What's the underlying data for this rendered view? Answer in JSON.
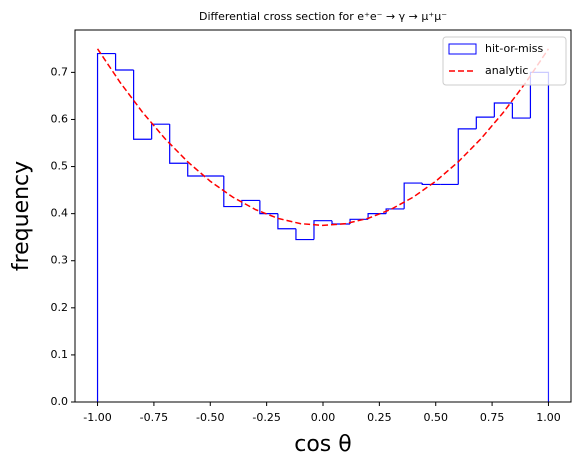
{
  "chart_data": {
    "type": "histogram",
    "title": "Differential cross section for e⁺e⁻ → γ → μ⁺μ⁻",
    "xlabel": "cos θ",
    "ylabel": "frequency",
    "xlim": [
      -1.1,
      1.1
    ],
    "ylim": [
      0,
      0.79
    ],
    "xticks": [
      {
        "value": -1,
        "label": "-1.00"
      },
      {
        "value": -0.75,
        "label": "-0.75"
      },
      {
        "value": -0.5,
        "label": "-0.50"
      },
      {
        "value": -0.25,
        "label": "-0.25"
      },
      {
        "value": 0,
        "label": "0.00"
      },
      {
        "value": 0.25,
        "label": "0.25"
      },
      {
        "value": 0.5,
        "label": "0.50"
      },
      {
        "value": 0.75,
        "label": "0.75"
      },
      {
        "value": 1,
        "label": "1.00"
      }
    ],
    "yticks": [
      {
        "value": 0,
        "label": "0.0"
      },
      0.1,
      0.2,
      0.3,
      0.4,
      0.5,
      0.6,
      0.7
    ],
    "legend": "upper right",
    "series": [
      {
        "name": "hit-or-miss",
        "type": "histogram",
        "color": "blue",
        "bins": [
          -1,
          -0.92,
          -0.84,
          -0.76,
          -0.68,
          -0.6,
          -0.52,
          -0.44,
          -0.36,
          -0.28,
          -0.2,
          -0.12,
          -0.04,
          0.04,
          0.12,
          0.2,
          0.28,
          0.36,
          0.44,
          0.52,
          0.6,
          0.68,
          0.76,
          0.84,
          0.92,
          1
        ],
        "values": [
          0.74,
          0.705,
          0.558,
          0.59,
          0.507,
          0.48,
          0.48,
          0.415,
          0.428,
          0.4,
          0.368,
          0.345,
          0.385,
          0.378,
          0.388,
          0.4,
          0.41,
          0.465,
          0.462,
          0.462,
          0.58,
          0.605,
          0.635,
          0.603,
          0.7
        ]
      },
      {
        "name": "analytic",
        "type": "line",
        "color": "red",
        "dashed": true,
        "x": [
          -1,
          -0.9,
          -0.8,
          -0.7,
          -0.6,
          -0.5,
          -0.4,
          -0.3,
          -0.2,
          -0.1,
          0,
          0.1,
          0.2,
          0.3,
          0.4,
          0.5,
          0.6,
          0.7,
          0.8,
          0.9,
          1
        ],
        "values": [
          0.75,
          0.67875,
          0.615,
          0.55875,
          0.51,
          0.46875,
          0.435,
          0.40875,
          0.39,
          0.37875,
          0.375,
          0.37875,
          0.39,
          0.40875,
          0.435,
          0.46875,
          0.51,
          0.55875,
          0.615,
          0.67875,
          0.75
        ]
      }
    ]
  }
}
